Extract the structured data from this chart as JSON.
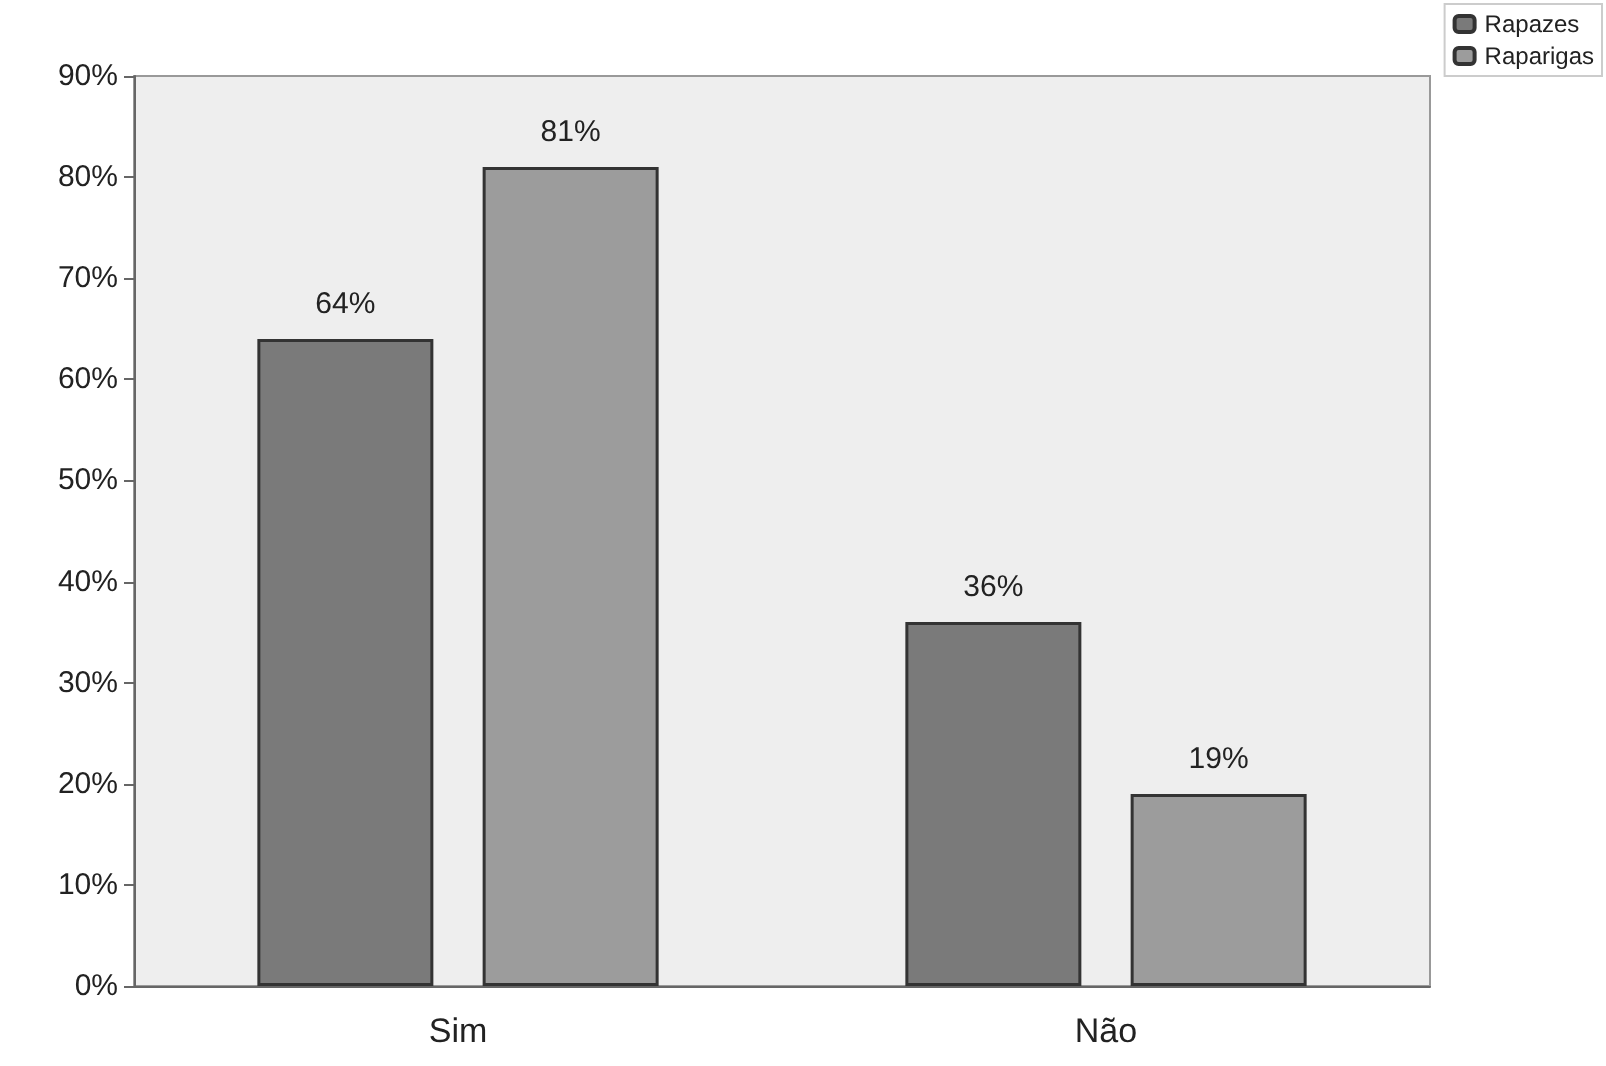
{
  "chart_data": {
    "type": "bar",
    "categories": [
      "Sim",
      "Não"
    ],
    "series": [
      {
        "name": "Rapazes",
        "color": "#7a7a7a",
        "values": [
          64,
          36
        ],
        "value_labels": [
          "64%",
          "36%"
        ]
      },
      {
        "name": "Raparigas",
        "color": "#9c9c9c",
        "values": [
          81,
          19
        ],
        "value_labels": [
          "81%",
          "19%"
        ]
      }
    ],
    "ylim": [
      0,
      90
    ],
    "yticks": [
      {
        "value": 0,
        "label": "0%"
      },
      {
        "value": 10,
        "label": "10%"
      },
      {
        "value": 20,
        "label": "20%"
      },
      {
        "value": 30,
        "label": "30%"
      },
      {
        "value": 40,
        "label": "40%"
      },
      {
        "value": 50,
        "label": "50%"
      },
      {
        "value": 60,
        "label": "60%"
      },
      {
        "value": 70,
        "label": "70%"
      },
      {
        "value": 80,
        "label": "80%"
      },
      {
        "value": 90,
        "label": "90%"
      }
    ],
    "grid": false,
    "legend": "top right"
  }
}
